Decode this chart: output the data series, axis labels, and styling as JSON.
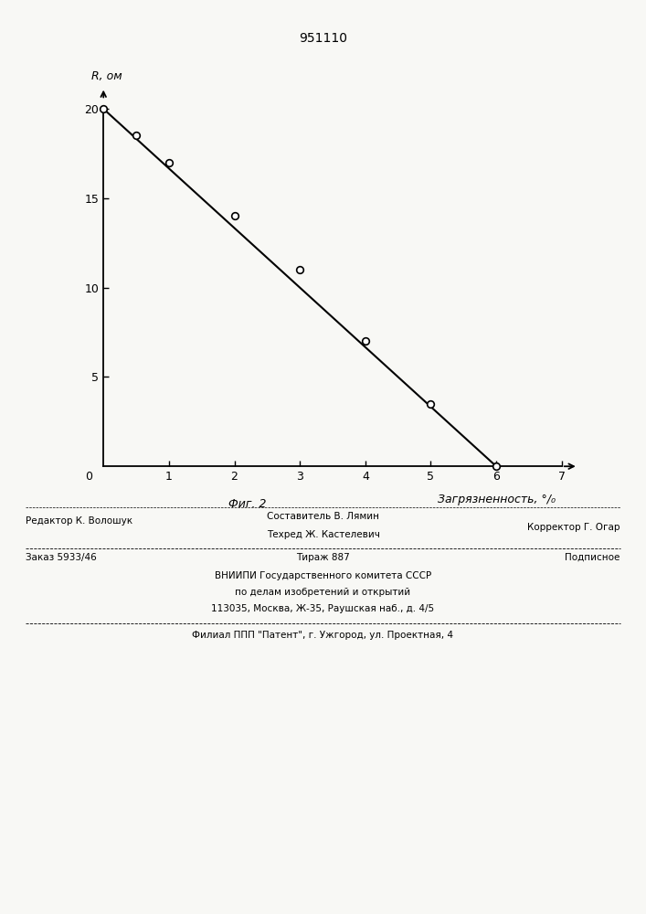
{
  "title": "951110",
  "ylabel": "R, ом",
  "xlabel_fig": "Фиг. 2",
  "xlabel_axis": "Загрязненность, °/₀",
  "x_data": [
    0,
    0.5,
    1.0,
    2.0,
    3.0,
    4.0,
    5.0,
    6.0
  ],
  "y_data": [
    20,
    18.5,
    17.0,
    14.0,
    11.0,
    7.0,
    3.5,
    0.0
  ],
  "line_x": [
    0,
    6
  ],
  "line_y": [
    20,
    0
  ],
  "xlim": [
    -0.1,
    7.3
  ],
  "ylim": [
    -0.5,
    22
  ],
  "xticks": [
    1,
    2,
    3,
    4,
    5,
    6,
    7
  ],
  "yticks": [
    5,
    10,
    15,
    20
  ],
  "background_color": "#f8f8f5",
  "line_color": "#000000",
  "footer": {
    "row1_left": "Редактор К. Волошук",
    "row1_center_top": "Составитель В. Лямин",
    "row1_center_bot": "Техред Ж. Кастелевич",
    "row1_right": "Корректор Г. Огар",
    "row2_left": "Заказ 5933/46",
    "row2_center": "Тираж 887",
    "row2_right": "Подписное",
    "row3_l1": "ВНИИПИ Государственного комитета СССР",
    "row3_l2": "по делам изобретений и открытий",
    "row3_l3": "113035, Москва, Ж-35, Раушская наб., д. 4/5",
    "row4": "Филиал ППП \"Патент\", г. Ужгород, ул. Проектная, 4"
  }
}
